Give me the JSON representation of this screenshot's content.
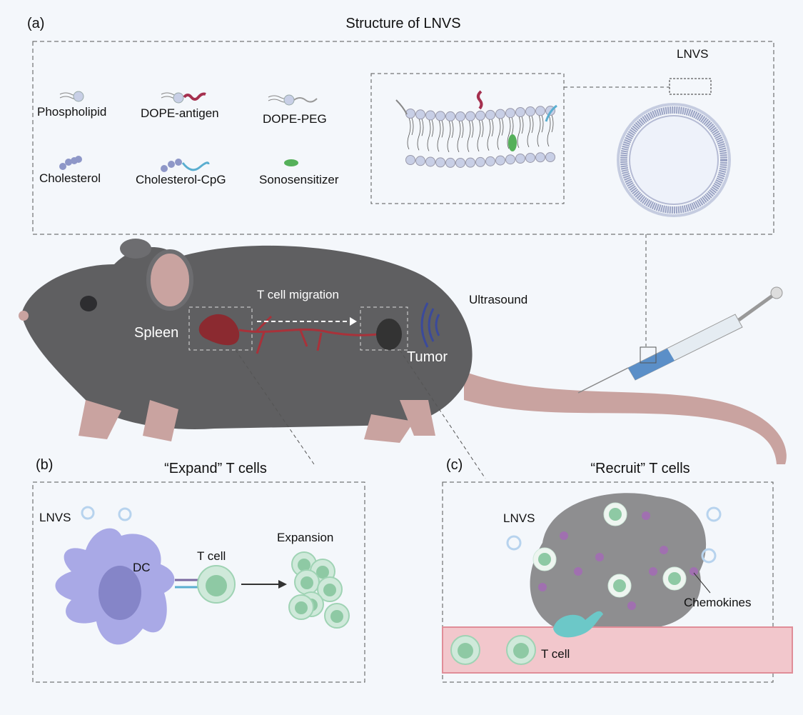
{
  "panel_a": {
    "tag": "(a)",
    "title": "Structure of LNVS",
    "legend": [
      "Phospholipid",
      "DOPE-antigen",
      "DOPE-PEG",
      "Cholesterol",
      "Cholesterol-CpG",
      "Sonosensitizer"
    ],
    "vesicle_label": "LNVS"
  },
  "mouse": {
    "migration_label": "T cell migration",
    "spleen_label": "Spleen",
    "tumor_label": "Tumor",
    "ultrasound_label": "Ultrasound"
  },
  "panel_b": {
    "tag": "(b)",
    "title": "“Expand” T cells",
    "lnvs_label": "LNVS",
    "dc_label": "DC",
    "tcell_label": "T cell",
    "expansion_label": "Expansion"
  },
  "panel_c": {
    "tag": "(c)",
    "title": "“Recruit” T cells",
    "lnvs_label": "LNVS",
    "chemokines_label": "Chemokines",
    "tcell_label": "T cell"
  },
  "colors": {
    "background": "#f4f7fb",
    "mouse_body": "#5f5f61",
    "mouse_skin": "#c9a3a0",
    "vessel": "#f2c7cc",
    "tcell": "#9fd3b4",
    "dc": "#a9a9e6",
    "antigen": "#a5304f",
    "sonosensitizer": "#55b05a"
  }
}
